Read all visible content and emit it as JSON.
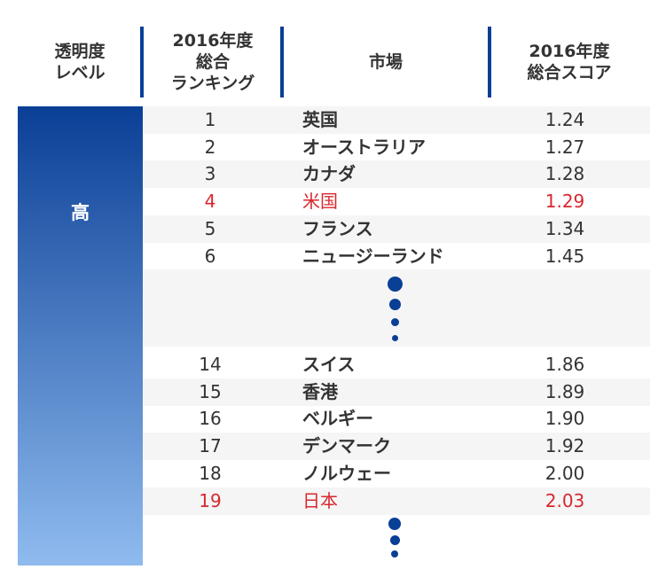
{
  "headers": {
    "level": "透明度\nレベル",
    "rank": "2016年度\n総合\nランキング",
    "market": "市場",
    "score": "2016年度\n総合スコア"
  },
  "level_label": "高",
  "colors": {
    "accent": "#0a3f96",
    "highlight": "#d7282f",
    "gradient_top": "#0a3f96",
    "gradient_bottom": "#8fbbef",
    "row_stripe": "#f5f5f5"
  },
  "chart_data": {
    "type": "table",
    "columns": [
      "2016年度 総合ランキング",
      "市場",
      "2016年度 総合スコア"
    ],
    "rows_top": [
      {
        "rank": "1",
        "market": "英国",
        "score": "1.24",
        "highlight": false
      },
      {
        "rank": "2",
        "market": "オーストラリア",
        "score": "1.27",
        "highlight": false
      },
      {
        "rank": "3",
        "market": "カナダ",
        "score": "1.28",
        "highlight": false
      },
      {
        "rank": "4",
        "market": "米国",
        "score": "1.29",
        "highlight": true
      },
      {
        "rank": "5",
        "market": "フランス",
        "score": "1.34",
        "highlight": false
      },
      {
        "rank": "6",
        "market": "ニュージーランド",
        "score": "1.45",
        "highlight": false
      }
    ],
    "rows_bottom": [
      {
        "rank": "14",
        "market": "スイス",
        "score": "1.86",
        "highlight": false
      },
      {
        "rank": "15",
        "market": "香港",
        "score": "1.89",
        "highlight": false
      },
      {
        "rank": "16",
        "market": "ベルギー",
        "score": "1.90",
        "highlight": false
      },
      {
        "rank": "17",
        "market": "デンマーク",
        "score": "1.92",
        "highlight": false
      },
      {
        "rank": "18",
        "market": "ノルウェー",
        "score": "2.00",
        "highlight": false
      },
      {
        "rank": "19",
        "market": "日本",
        "score": "2.03",
        "highlight": true
      }
    ]
  }
}
